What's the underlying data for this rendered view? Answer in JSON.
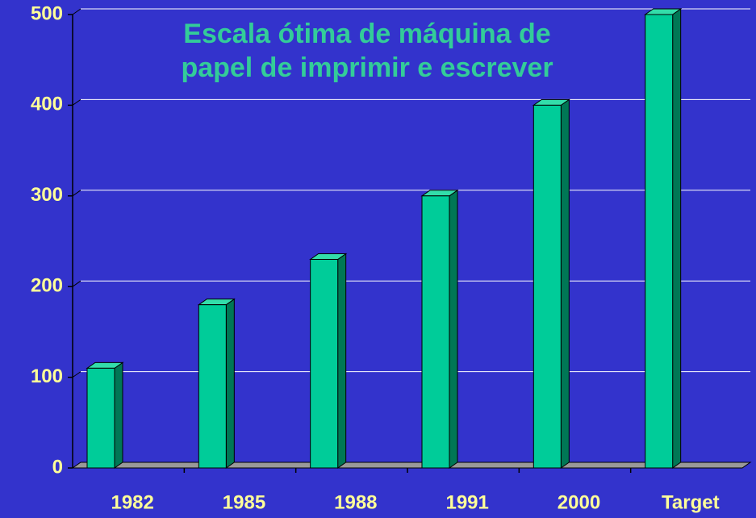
{
  "chart_data": {
    "type": "bar3d",
    "title": [
      "Escala ótima de máquina de",
      "papel de imprimir e escrever"
    ],
    "categories": [
      "1982",
      "1985",
      "1988",
      "1991",
      "2000",
      "Target"
    ],
    "values": [
      110,
      180,
      230,
      300,
      400,
      500
    ],
    "color": "#00cc99",
    "ylim": [
      0,
      500
    ],
    "yticks": [
      0,
      100,
      200,
      300,
      400,
      500
    ],
    "grid": true
  }
}
